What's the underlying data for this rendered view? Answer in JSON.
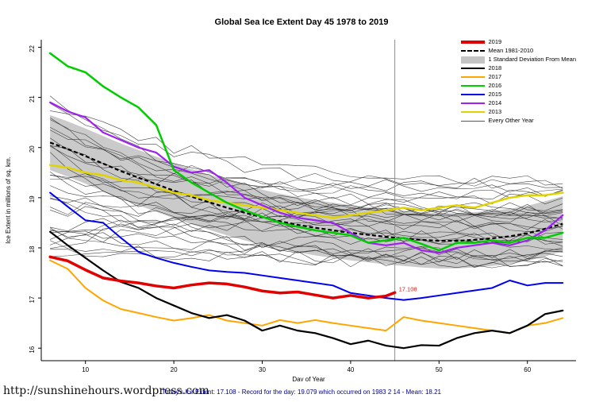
{
  "title": "Global Sea Ice Extent Day 45 1978 to 2019",
  "footer": {
    "url": "http://sunshinehours.wordpress.com",
    "summary": "Today's Ice Extent: 17.108  - Record for the day: 19.079 which occurred on 1983 2 14  - Mean: 18.21"
  },
  "legend": {
    "items": [
      {
        "label": "2019",
        "type": "line",
        "color": "#e00000",
        "weight": 4
      },
      {
        "label": "Mean 1981-2010",
        "type": "dashed",
        "color": "#000000",
        "weight": 2
      },
      {
        "label": "1 Standard Deviation From Mean",
        "type": "box",
        "color": "#c4c4c4"
      },
      {
        "label": "2018",
        "type": "line",
        "color": "#000000",
        "weight": 2
      },
      {
        "label": "2017",
        "type": "line",
        "color": "#ffa500",
        "weight": 2
      },
      {
        "label": "2016",
        "type": "line",
        "color": "#00cc00",
        "weight": 2
      },
      {
        "label": "2015",
        "type": "line",
        "color": "#0000ee",
        "weight": 2
      },
      {
        "label": "2014",
        "type": "line",
        "color": "#a020f0",
        "weight": 2
      },
      {
        "label": "2013",
        "type": "line",
        "color": "#dfd300",
        "weight": 2
      },
      {
        "label": "Every Other Year",
        "type": "line",
        "color": "#555555",
        "weight": 1
      }
    ]
  },
  "chart_data": {
    "type": "line",
    "title": "Global Sea Ice Extent Day 45 1978 to 2019",
    "xlabel": "Day of Year",
    "ylabel": "Ice Extent in millions of sq. km.",
    "xlim": [
      5,
      65.5
    ],
    "ylim": [
      15.75,
      22.15
    ],
    "x_ticks": [
      10,
      20,
      30,
      40,
      50,
      60
    ],
    "y_ticks": [
      16,
      17,
      18,
      19,
      20,
      21,
      22
    ],
    "grid": false,
    "legend_position": "top-right",
    "days": [
      6,
      8,
      10,
      12,
      14,
      16,
      18,
      20,
      22,
      24,
      26,
      28,
      30,
      32,
      34,
      36,
      38,
      40,
      42,
      44,
      46,
      48,
      50,
      52,
      54,
      56,
      58,
      60,
      62,
      64
    ],
    "marker": {
      "day": 45,
      "value": 17.108,
      "label": "17.108",
      "color": "#cc2222",
      "line_color": "#8c8c8c"
    },
    "std_dev": 0.55,
    "band_color": "#c4c4c4",
    "mean": {
      "name": "Mean 1981-2010",
      "values": [
        20.1,
        19.97,
        19.83,
        19.68,
        19.53,
        19.4,
        19.27,
        19.14,
        19.02,
        18.91,
        18.8,
        18.7,
        18.61,
        18.53,
        18.46,
        18.4,
        18.35,
        18.3,
        18.26,
        18.22,
        18.19,
        18.16,
        18.14,
        18.14,
        18.16,
        18.19,
        18.23,
        18.29,
        18.38,
        18.48
      ]
    },
    "series": [
      {
        "name": "2013",
        "color": "#dfd300",
        "width": 2.5,
        "values": [
          19.65,
          19.6,
          19.5,
          19.45,
          19.35,
          19.3,
          19.2,
          19.1,
          19.05,
          18.95,
          18.9,
          18.85,
          18.8,
          18.75,
          18.7,
          18.65,
          18.6,
          18.65,
          18.7,
          18.75,
          18.8,
          18.75,
          18.8,
          18.85,
          18.8,
          18.9,
          19.0,
          19.05,
          19.05,
          19.1
        ]
      },
      {
        "name": "2014",
        "color": "#a020f0",
        "width": 2.2,
        "values": [
          20.9,
          20.72,
          20.6,
          20.3,
          20.15,
          20.0,
          19.9,
          19.62,
          19.5,
          19.55,
          19.3,
          19.0,
          18.85,
          18.7,
          18.6,
          18.55,
          18.5,
          18.3,
          18.1,
          18.05,
          18.1,
          17.95,
          17.9,
          18.0,
          18.05,
          18.1,
          18.05,
          18.15,
          18.35,
          18.65
        ]
      },
      {
        "name": "2016",
        "color": "#00cc00",
        "width": 2.5,
        "values": [
          21.88,
          21.62,
          21.5,
          21.22,
          21.0,
          20.8,
          20.45,
          19.55,
          19.3,
          19.1,
          18.9,
          18.75,
          18.62,
          18.5,
          18.42,
          18.35,
          18.3,
          18.25,
          18.1,
          18.15,
          18.2,
          18.08,
          17.95,
          18.1,
          18.1,
          18.15,
          18.1,
          18.2,
          18.2,
          18.3
        ]
      },
      {
        "name": "2015",
        "color": "#0000ee",
        "width": 2,
        "values": [
          19.1,
          18.82,
          18.55,
          18.5,
          18.2,
          17.92,
          17.8,
          17.7,
          17.62,
          17.55,
          17.52,
          17.5,
          17.45,
          17.4,
          17.35,
          17.3,
          17.25,
          17.1,
          17.05,
          17.0,
          16.96,
          17.0,
          17.05,
          17.1,
          17.15,
          17.2,
          17.35,
          17.25,
          17.3,
          17.3
        ]
      },
      {
        "name": "2017",
        "color": "#ffa500",
        "width": 2,
        "values": [
          17.75,
          17.58,
          17.2,
          16.95,
          16.78,
          16.7,
          16.62,
          16.55,
          16.6,
          16.66,
          16.55,
          16.5,
          16.45,
          16.56,
          16.5,
          16.56,
          16.5,
          16.45,
          16.4,
          16.35,
          16.62,
          16.55,
          16.5,
          16.45,
          16.4,
          16.35,
          16.3,
          16.45,
          16.5,
          16.6
        ]
      },
      {
        "name": "2018",
        "color": "#000000",
        "width": 2.2,
        "values": [
          18.32,
          18.05,
          17.8,
          17.55,
          17.32,
          17.2,
          17.0,
          16.85,
          16.7,
          16.6,
          16.66,
          16.55,
          16.35,
          16.45,
          16.35,
          16.3,
          16.2,
          16.08,
          16.15,
          16.05,
          16.0,
          16.06,
          16.05,
          16.2,
          16.3,
          16.35,
          16.3,
          16.45,
          16.68,
          16.75
        ]
      },
      {
        "name": "2019",
        "color": "#e00000",
        "width": 3.5,
        "days": [
          6,
          8,
          10,
          12,
          14,
          16,
          18,
          20,
          22,
          24,
          26,
          28,
          30,
          32,
          34,
          36,
          38,
          40,
          42,
          44,
          45
        ],
        "values": [
          17.82,
          17.74,
          17.56,
          17.4,
          17.34,
          17.3,
          17.24,
          17.2,
          17.26,
          17.3,
          17.28,
          17.22,
          17.14,
          17.1,
          17.12,
          17.06,
          17.0,
          17.05,
          17.0,
          17.04,
          17.108
        ]
      }
    ],
    "background": {
      "name": "Every Other Year",
      "count": 33,
      "seed": 7,
      "start_range": [
        17.9,
        21.3
      ],
      "end_range": [
        17.6,
        19.5
      ],
      "color": "#2e2e2e",
      "width": 0.6
    }
  }
}
